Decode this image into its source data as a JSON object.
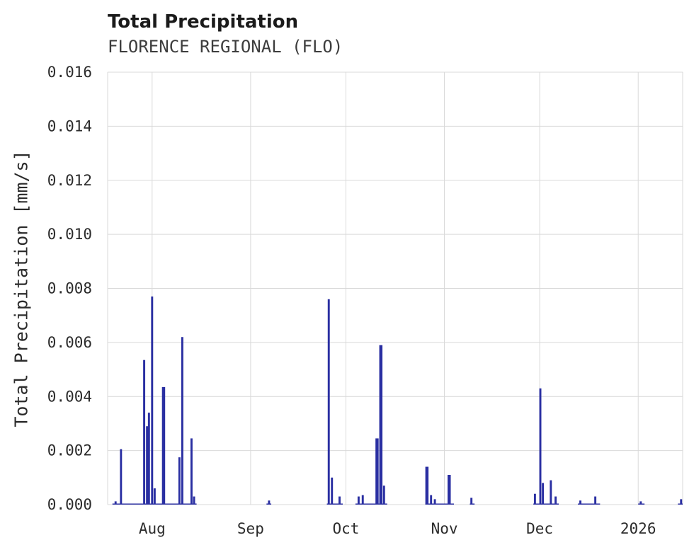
{
  "chart": {
    "title": "Total Precipitation",
    "subtitle": "FLORENCE REGIONAL (FLO)",
    "ylabel": "Total Precipitation [mm/s]"
  },
  "chart_data": {
    "type": "bar",
    "title": "Total Precipitation",
    "subtitle": "FLORENCE REGIONAL (FLO)",
    "xlabel": "",
    "ylabel": "Total Precipitation [mm/s]",
    "ylim": [
      0,
      0.016
    ],
    "ytick_step": 0.002,
    "ytick_labels": [
      "0.000",
      "0.002",
      "0.004",
      "0.006",
      "0.008",
      "0.010",
      "0.012",
      "0.014",
      "0.016"
    ],
    "x_unit": "days-along-axis",
    "x_range": [
      0,
      181
    ],
    "xticks": [
      {
        "label": "Aug",
        "day": 14
      },
      {
        "label": "Sep",
        "day": 45
      },
      {
        "label": "Oct",
        "day": 75
      },
      {
        "label": "Nov",
        "day": 106
      },
      {
        "label": "Dec",
        "day": 136
      },
      {
        "label": "2026",
        "day": 167
      }
    ],
    "grid_on": true,
    "legend": "none",
    "series_color": "#2a2fa2",
    "grid_color": "#d9d9d9",
    "default_width_days": 0.65,
    "points": [
      {
        "day": 2.5,
        "value": 0.00012
      },
      {
        "day": 4.2,
        "value": 0.00205
      },
      {
        "day": 11.5,
        "value": 0.00535
      },
      {
        "day": 12.4,
        "value": 0.0029
      },
      {
        "day": 13.0,
        "value": 0.0034
      },
      {
        "day": 14.0,
        "value": 0.0077
      },
      {
        "day": 14.8,
        "value": 0.0006
      },
      {
        "day": 17.6,
        "value": 0.00435,
        "w": 1.0
      },
      {
        "day": 22.6,
        "value": 0.00175
      },
      {
        "day": 23.5,
        "value": 0.0062
      },
      {
        "day": 26.4,
        "value": 0.00245
      },
      {
        "day": 27.2,
        "value": 0.0003
      },
      {
        "day": 50.8,
        "value": 0.00015
      },
      {
        "day": 69.6,
        "value": 0.0076
      },
      {
        "day": 70.6,
        "value": 0.001
      },
      {
        "day": 73.0,
        "value": 0.0003
      },
      {
        "day": 79.0,
        "value": 0.0003
      },
      {
        "day": 80.3,
        "value": 0.00035
      },
      {
        "day": 84.8,
        "value": 0.00245,
        "w": 1.0
      },
      {
        "day": 86.0,
        "value": 0.0059,
        "w": 1.0
      },
      {
        "day": 87.0,
        "value": 0.0007
      },
      {
        "day": 100.5,
        "value": 0.0014,
        "w": 1.0
      },
      {
        "day": 101.8,
        "value": 0.00035
      },
      {
        "day": 103.0,
        "value": 0.0002
      },
      {
        "day": 107.5,
        "value": 0.0011,
        "w": 1.0
      },
      {
        "day": 114.5,
        "value": 0.00025
      },
      {
        "day": 134.5,
        "value": 0.0004
      },
      {
        "day": 136.2,
        "value": 0.0043
      },
      {
        "day": 137.0,
        "value": 0.0008
      },
      {
        "day": 139.5,
        "value": 0.0009
      },
      {
        "day": 141.0,
        "value": 0.0003
      },
      {
        "day": 148.8,
        "value": 0.00015
      },
      {
        "day": 153.5,
        "value": 0.0003
      },
      {
        "day": 167.8,
        "value": 0.00012
      },
      {
        "day": 180.5,
        "value": 0.0002
      }
    ],
    "baseline_segments": [
      [
        1.5,
        28.0
      ],
      [
        50.0,
        51.5
      ],
      [
        69.0,
        74.0
      ],
      [
        78.0,
        88.0
      ],
      [
        100.0,
        109.0
      ],
      [
        114.0,
        115.5
      ],
      [
        134.0,
        142.0
      ],
      [
        148.0,
        155.0
      ],
      [
        167.0,
        169.0
      ],
      [
        179.5,
        181.0
      ]
    ]
  }
}
